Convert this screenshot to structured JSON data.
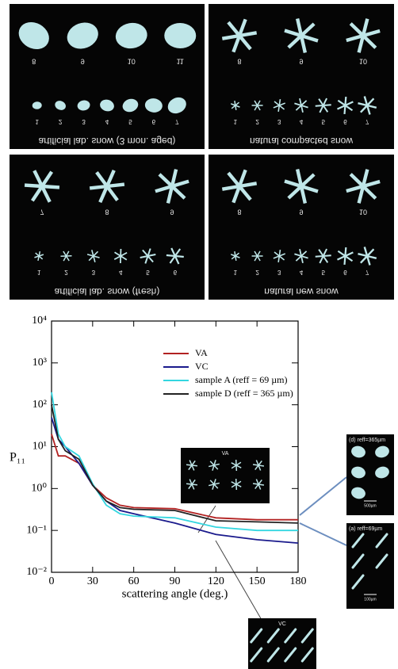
{
  "panels": [
    {
      "caption": "artificial lab. snow (3 mon. aged)",
      "large": [
        "8",
        "9",
        "10",
        "11"
      ],
      "small": [
        "1",
        "2",
        "3",
        "4",
        "5",
        "6",
        "7"
      ]
    },
    {
      "caption": "natural compacted snow",
      "large": [
        "8",
        "9",
        "10"
      ],
      "small": [
        "1",
        "2",
        "3",
        "4",
        "5",
        "6",
        "7"
      ]
    },
    {
      "caption": "artificial lab. snow (fresh)",
      "large": [
        "7",
        "8",
        "9"
      ],
      "small": [
        "1",
        "2",
        "3",
        "4",
        "5",
        "6"
      ]
    },
    {
      "caption": "natural new snow",
      "large": [
        "8",
        "9",
        "10"
      ],
      "small": [
        "1",
        "2",
        "3",
        "4",
        "5",
        "6",
        "7"
      ]
    }
  ],
  "insets": [
    {
      "label": "VA"
    },
    {
      "label": "VC"
    },
    {
      "label": "(d) reff=365µm",
      "scale": "500µm"
    },
    {
      "label": "(a) reff=69µm",
      "scale": "100µm"
    }
  ],
  "chart_data": {
    "type": "line",
    "log_y": true,
    "grid": false,
    "x_label": "scattering angle (deg.)",
    "y_label": "P₁₁",
    "x": [
      0,
      5,
      10,
      20,
      30,
      40,
      50,
      60,
      90,
      120,
      150,
      180
    ],
    "series": [
      {
        "name": "VA",
        "color": "#b22222",
        "values": [
          20,
          6,
          6,
          4,
          1.2,
          0.6,
          0.4,
          0.35,
          0.33,
          0.2,
          0.18,
          0.18
        ]
      },
      {
        "name": "VC",
        "color": "#1a1a8c",
        "values": [
          50,
          15,
          10,
          4,
          1.2,
          0.5,
          0.3,
          0.25,
          0.15,
          0.08,
          0.06,
          0.05
        ]
      },
      {
        "name": "sample A (reff = 69 µm)",
        "color": "#33d6e0",
        "values": [
          200,
          20,
          10,
          6,
          1.3,
          0.4,
          0.25,
          0.22,
          0.2,
          0.12,
          0.1,
          0.1
        ]
      },
      {
        "name": "sample D (reff = 365 µm)",
        "color": "#222222",
        "values": [
          100,
          15,
          8,
          5,
          1.2,
          0.5,
          0.35,
          0.32,
          0.3,
          0.17,
          0.16,
          0.15
        ]
      }
    ],
    "xlim": [
      0,
      180
    ],
    "xticks": [
      0,
      30,
      60,
      90,
      120,
      150,
      180
    ],
    "ylim": [
      0.01,
      10000
    ],
    "yticks": [
      {
        "value": 0.01,
        "label": "10⁻²"
      },
      {
        "value": 0.1,
        "label": "10⁻¹"
      },
      {
        "value": 1,
        "label": "10⁰"
      },
      {
        "value": 10,
        "label": "10¹"
      },
      {
        "value": 100,
        "label": "10²"
      },
      {
        "value": 1000,
        "label": "10³"
      },
      {
        "value": 10000,
        "label": "10⁴"
      }
    ]
  }
}
